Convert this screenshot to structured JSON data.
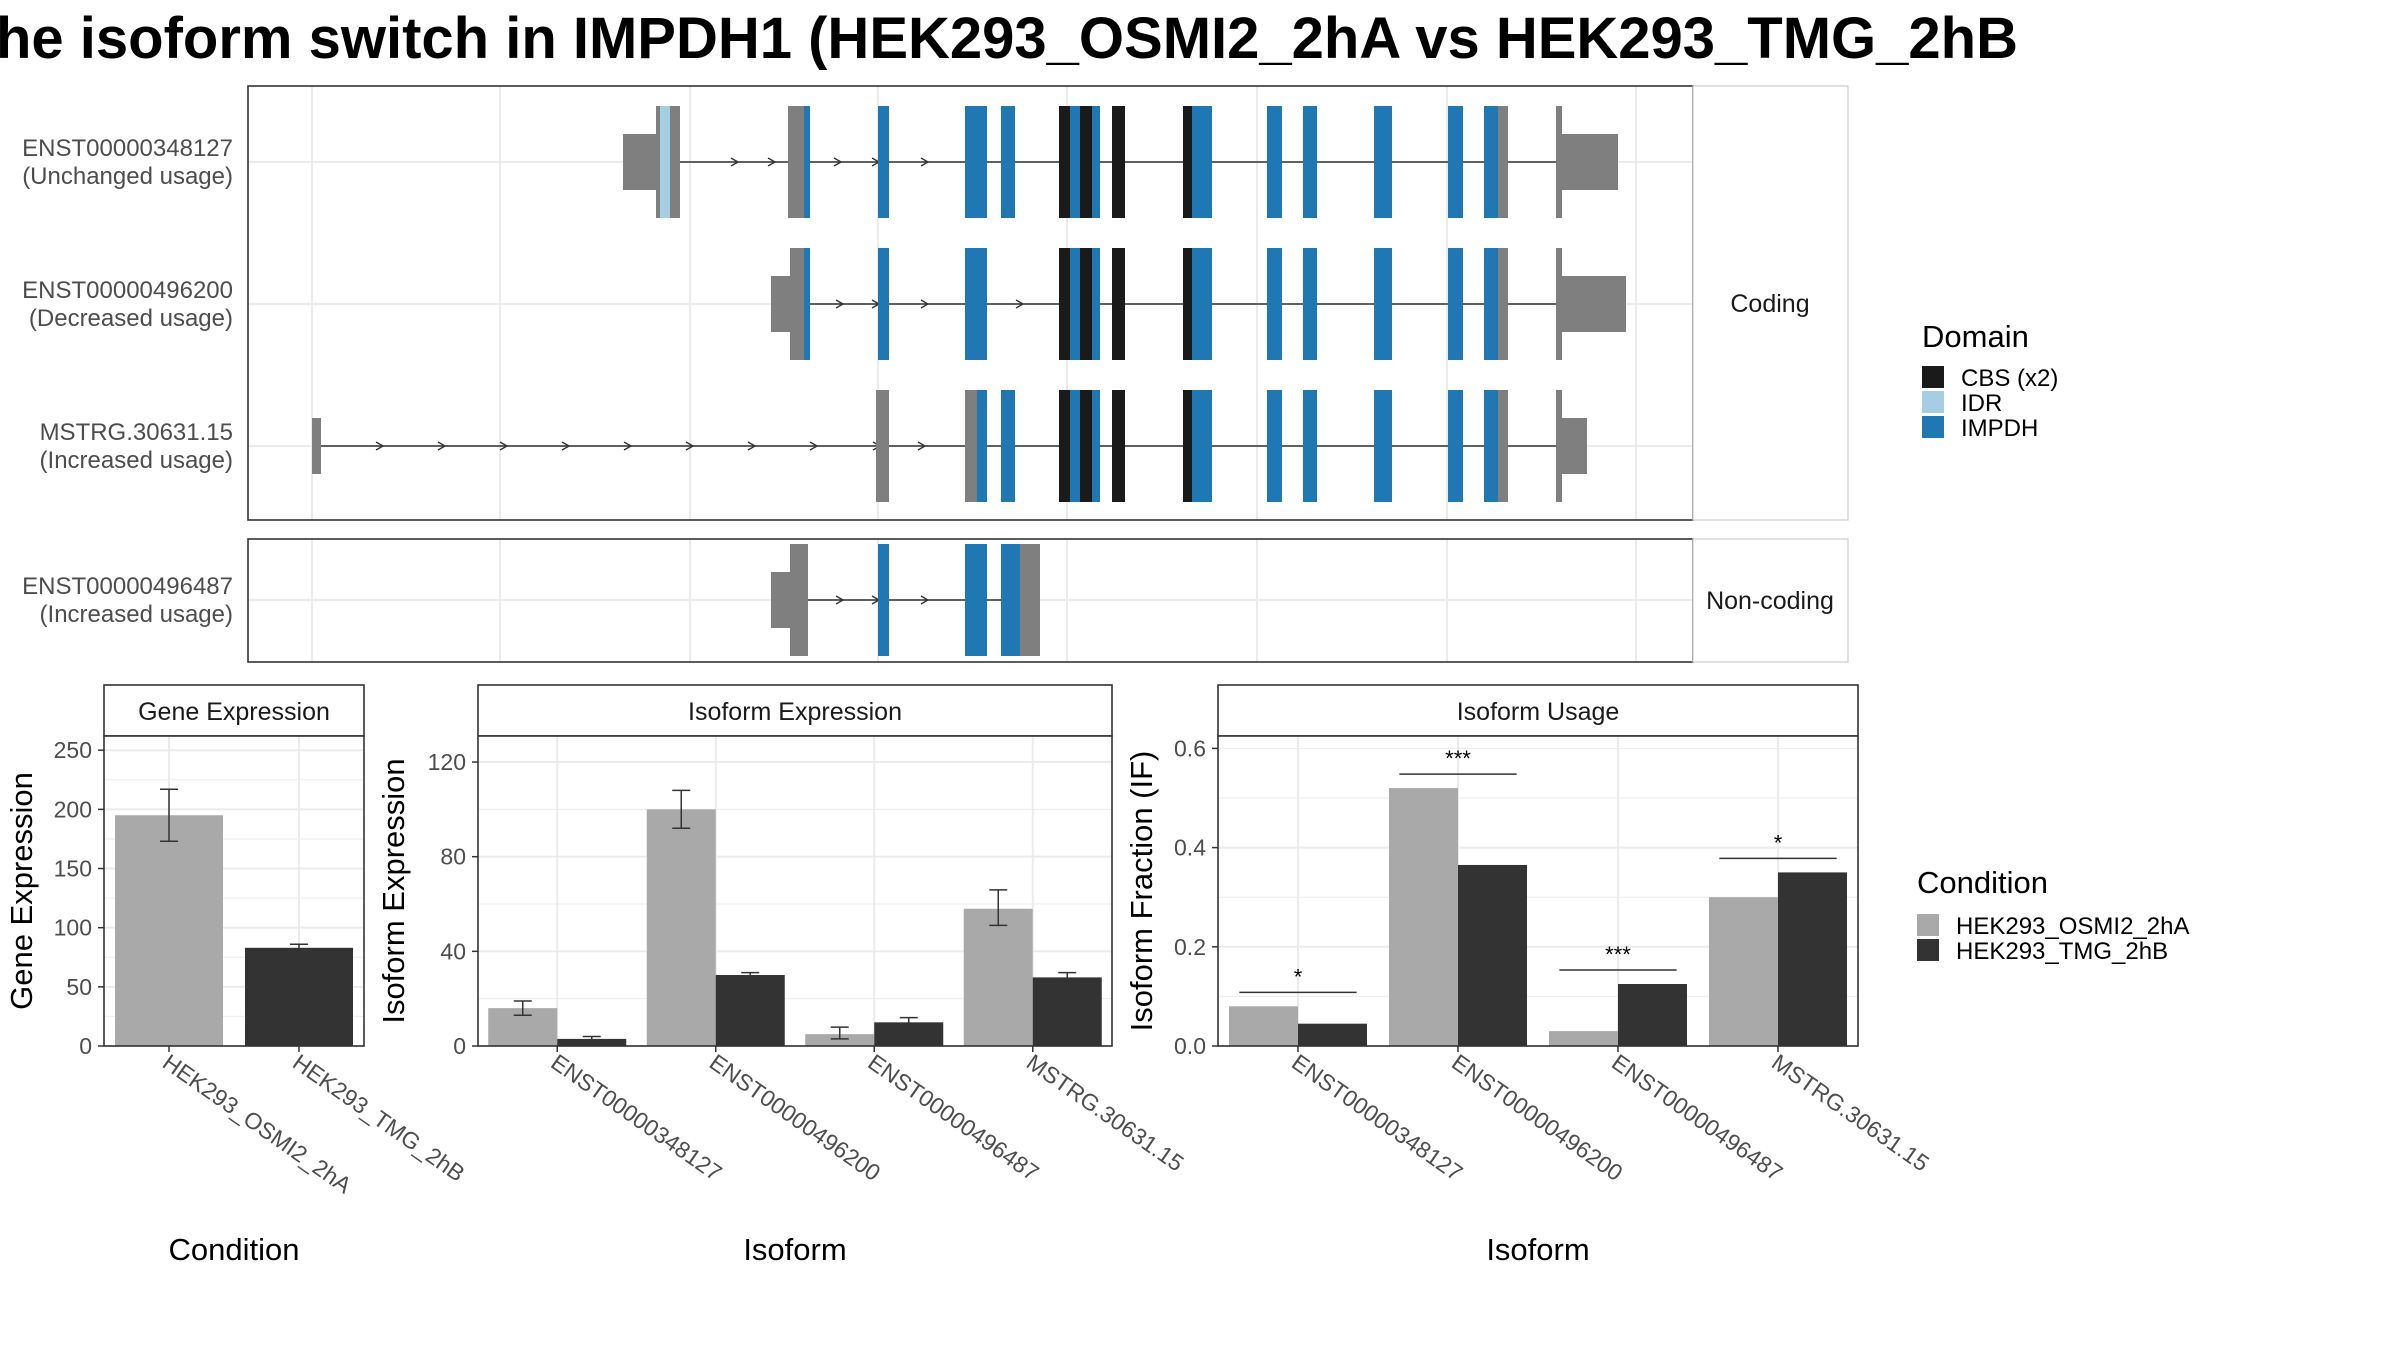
{
  "title": "he isoform switch in IMPDH1 (HEK293_OSMI2_2hA vs HEK293_TMG_2hB",
  "colors": {
    "exon": "#7f7f7f",
    "cbs": "#1a1a1a",
    "idr": "#a6cee3",
    "impdh": "#1f78b4",
    "cond_a": "#a9a9a9",
    "cond_b": "#333333",
    "grid": "#ebebeb",
    "panel_border": "#333333"
  },
  "structure": {
    "coding_label": "Coding",
    "noncoding_label": "Non-coding",
    "transcripts": [
      {
        "id": "ENST00000348127",
        "usage": "(Unchanged usage)",
        "group": "coding"
      },
      {
        "id": "ENST00000496200",
        "usage": "(Decreased usage)",
        "group": "coding"
      },
      {
        "id": "MSTRG.30631.15",
        "usage": "(Increased usage)",
        "group": "coding"
      },
      {
        "id": "ENST00000496487",
        "usage": "(Increased usage)",
        "group": "noncoding"
      }
    ]
  },
  "legend_domain": {
    "title": "Domain",
    "items": [
      {
        "label": "CBS (x2)",
        "color": "#1a1a1a"
      },
      {
        "label": "IDR",
        "color": "#a6cee3"
      },
      {
        "label": "IMPDH",
        "color": "#1f78b4"
      }
    ]
  },
  "legend_condition": {
    "title": "Condition",
    "items": [
      {
        "label": "HEK293_OSMI2_2hA",
        "color": "#a9a9a9"
      },
      {
        "label": "HEK293_TMG_2hB",
        "color": "#333333"
      }
    ]
  },
  "chart_data": [
    {
      "type": "bar",
      "title": "Gene Expression",
      "xlabel": "Condition",
      "ylabel": "Gene Expression",
      "categories": [
        "HEK293_OSMI2_2hA",
        "HEK293_TMG_2hB"
      ],
      "values": [
        195,
        83
      ],
      "errors": [
        [
          173,
          217
        ],
        [
          80,
          86
        ]
      ],
      "ylim": [
        0,
        262
      ],
      "yticks": [
        0,
        50,
        100,
        150,
        200,
        250
      ]
    },
    {
      "type": "bar",
      "title": "Isoform Expression",
      "xlabel": "Isoform",
      "ylabel": "Isoform Expression",
      "categories": [
        "ENST00000348127",
        "ENST00000496200",
        "ENST00000496487",
        "MSTRG.30631.15"
      ],
      "series": [
        {
          "name": "HEK293_OSMI2_2hA",
          "values": [
            16,
            100,
            5,
            58
          ],
          "errors": [
            [
              13,
              19
            ],
            [
              92,
              108
            ],
            [
              3,
              8
            ],
            [
              51,
              66
            ]
          ]
        },
        {
          "name": "HEK293_TMG_2hB",
          "values": [
            3,
            30,
            10,
            29
          ],
          "errors": [
            [
              2,
              4
            ],
            [
              29,
              31
            ],
            [
              9,
              12
            ],
            [
              27,
              31
            ]
          ]
        }
      ],
      "ylim": [
        0,
        131
      ],
      "yticks": [
        0,
        40,
        80,
        120
      ]
    },
    {
      "type": "bar",
      "title": "Isoform Usage",
      "xlabel": "Isoform",
      "ylabel": "Isoform Fraction (IF)",
      "categories": [
        "ENST00000348127",
        "ENST00000496200",
        "ENST00000496487",
        "MSTRG.30631.15"
      ],
      "series": [
        {
          "name": "HEK293_OSMI2_2hA",
          "values": [
            0.08,
            0.52,
            0.03,
            0.3
          ]
        },
        {
          "name": "HEK293_TMG_2hB",
          "values": [
            0.045,
            0.365,
            0.125,
            0.35
          ]
        }
      ],
      "significance": [
        "*",
        "***",
        "***",
        "*"
      ],
      "ylim": [
        0,
        0.625
      ],
      "yticks": [
        "0.0",
        "0.2",
        "0.4",
        "0.6"
      ]
    }
  ]
}
